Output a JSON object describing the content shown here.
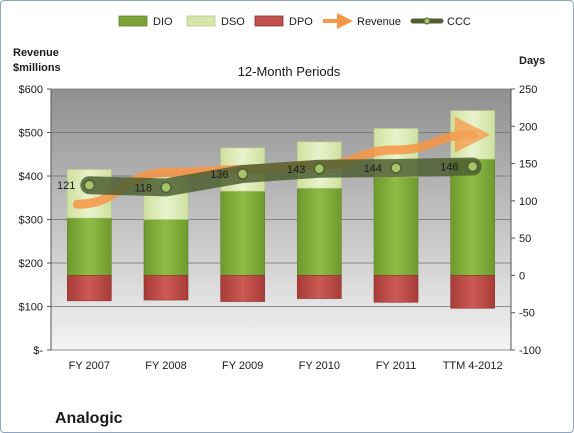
{
  "chart_data": {
    "type": "bar",
    "title": "12-Month Periods",
    "company": "Analogic",
    "left_axis_label_1": "Revenue",
    "left_axis_label_2": "$millions",
    "right_axis_label": "Days",
    "categories": [
      "FY 2007",
      "FY 2008",
      "FY 2009",
      "FY 2010",
      "FY 2011",
      "TTM 4-2012"
    ],
    "left_axis": {
      "min": 0,
      "max": 600,
      "ticks": [
        "$-",
        "$100",
        "$200",
        "$300",
        "$400",
        "$500",
        "$600"
      ]
    },
    "right_axis": {
      "min": -100,
      "max": 250,
      "ticks": [
        "-100",
        "-50",
        "0",
        "50",
        "100",
        "150",
        "200",
        "250"
      ]
    },
    "legend": [
      "DIO",
      "DSO",
      "DPO",
      "Revenue",
      "CCC"
    ],
    "series": [
      {
        "name": "DIO",
        "axis": "right",
        "values": [
          77,
          75,
          113,
          117,
          132,
          156
        ]
      },
      {
        "name": "DSO",
        "axis": "right",
        "values": [
          65,
          57,
          58,
          62,
          65,
          65
        ]
      },
      {
        "name": "DPO",
        "axis": "right",
        "values": [
          -34,
          -33,
          -35,
          -31,
          -36,
          -44
        ]
      },
      {
        "name": "Revenue",
        "axis": "left",
        "values": [
          335,
          408,
          415,
          425,
          460,
          495
        ]
      },
      {
        "name": "CCC",
        "axis": "right",
        "values": [
          121,
          118,
          136,
          143,
          144,
          146
        ]
      }
    ],
    "colors": {
      "DIO": "#7ba33a",
      "DSO": "#d6e6a8",
      "DPO": "#c0504d",
      "Revenue": "#f79646",
      "CCC": "#5b6b3a"
    },
    "grid": true
  }
}
